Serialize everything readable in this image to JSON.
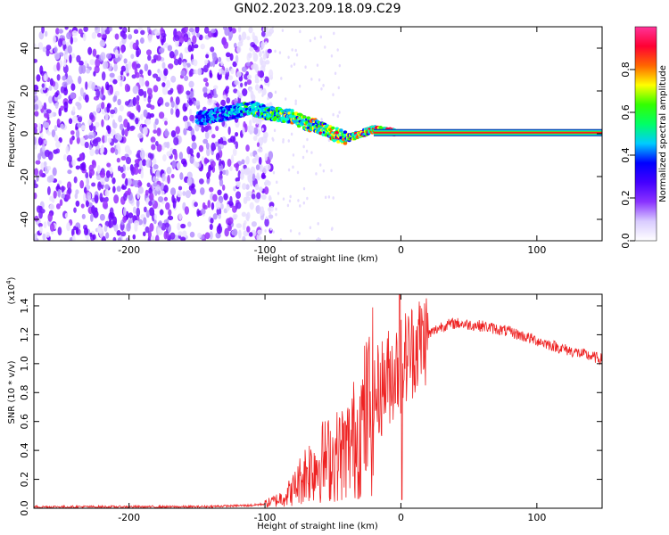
{
  "figure": {
    "title": "GN02.2023.209.18.09.C29"
  },
  "chart_data": [
    {
      "type": "heatmap",
      "xlabel": "Height of straight line (km)",
      "ylabel": "Frequency (Hz)",
      "xlim": [
        -270,
        148
      ],
      "ylim": [
        -50,
        50
      ],
      "xticks": [
        -200,
        -100,
        0,
        100
      ],
      "yticks": [
        -40,
        -20,
        0,
        20,
        40
      ],
      "colorbar": {
        "label": "Normalized spectral amplitude",
        "range": [
          0,
          1
        ],
        "ticks": [
          0.0,
          0.2,
          0.4,
          0.6,
          0.8
        ],
        "colors": [
          "#ffffff",
          "#d9ccff",
          "#8a33ff",
          "#4400ff",
          "#0000ff",
          "#00ccff",
          "#00ff66",
          "#33ff00",
          "#ffff00",
          "#ff6600",
          "#ff0033",
          "#ff3399"
        ]
      },
      "features": {
        "noise_region_x": [
          -270,
          -105
        ],
        "signal_path": [
          {
            "x": -150,
            "f": 7
          },
          {
            "x": -125,
            "f": 10
          },
          {
            "x": -110,
            "f": 12
          },
          {
            "x": -100,
            "f": 10
          },
          {
            "x": -90,
            "f": 9
          },
          {
            "x": -80,
            "f": 8
          },
          {
            "x": -70,
            "f": 5
          },
          {
            "x": -60,
            "f": 3
          },
          {
            "x": -50,
            "f": 0
          },
          {
            "x": -40,
            "f": -2
          },
          {
            "x": -30,
            "f": 0
          },
          {
            "x": -20,
            "f": 2
          },
          {
            "x": -10,
            "f": 1
          },
          {
            "x": 0,
            "f": 0.5
          },
          {
            "x": 148,
            "f": 0.5
          }
        ]
      }
    },
    {
      "type": "line",
      "xlabel": "Height of straight line (km)",
      "ylabel": "SNR (10 * v/v)",
      "multiplier_label": "(x10",
      "multiplier_exp": "4",
      "multiplier_close": ")",
      "xlim": [
        -270,
        148
      ],
      "ylim": [
        0,
        1.48
      ],
      "xticks": [
        -200,
        -100,
        0,
        100
      ],
      "yticks": [
        0.0,
        0.2,
        0.4,
        0.6,
        0.8,
        1.0,
        1.2,
        1.4
      ],
      "color": "#ee2222",
      "series": [
        {
          "x": [
            -270,
            -200,
            -150,
            -110,
            -100,
            -90,
            -80,
            -70,
            -60,
            -50,
            -40,
            -30,
            -20,
            -10,
            -5,
            0,
            10,
            20,
            30,
            40,
            60,
            80,
            100,
            120,
            148
          ],
          "y": [
            0.01,
            0.01,
            0.01,
            0.02,
            0.03,
            0.06,
            0.12,
            0.25,
            0.32,
            0.35,
            0.4,
            0.55,
            0.75,
            0.9,
            0.95,
            1.0,
            1.12,
            1.2,
            1.26,
            1.28,
            1.26,
            1.22,
            1.16,
            1.1,
            1.03
          ]
        }
      ]
    }
  ]
}
